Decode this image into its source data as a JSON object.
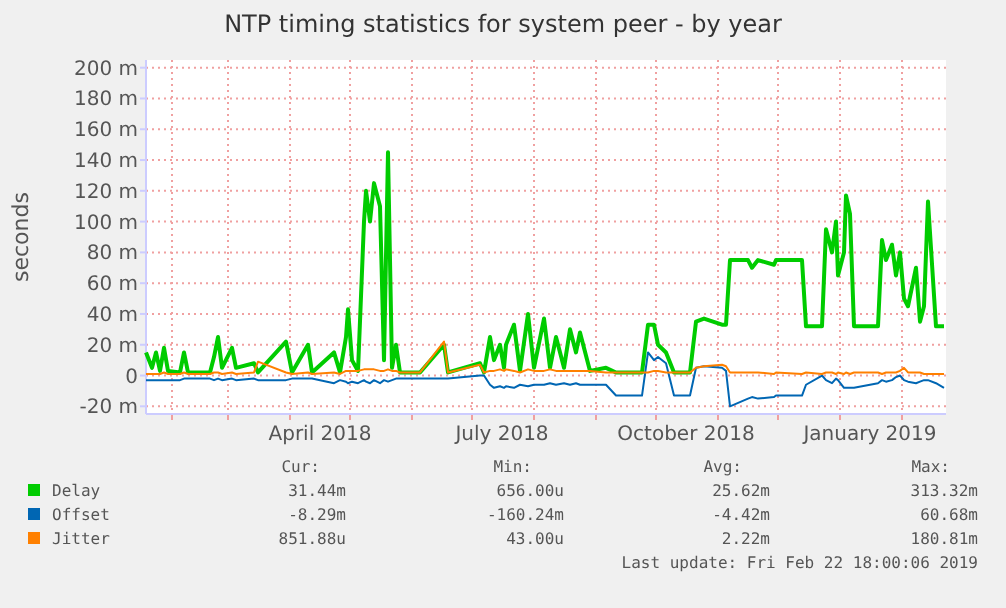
{
  "chart_data": {
    "type": "line",
    "title": "NTP timing statistics for system peer - by year",
    "ylabel": "seconds",
    "x": [
      "2018-01-19",
      "2018-01-22",
      "2018-01-24",
      "2018-01-26",
      "2018-01-28",
      "2018-01-30",
      "2018-02-05",
      "2018-02-07",
      "2018-02-09",
      "2018-02-20",
      "2018-02-22",
      "2018-02-24",
      "2018-02-26",
      "2018-03-03",
      "2018-03-05",
      "2018-03-14",
      "2018-03-16",
      "2018-03-30",
      "2018-04-02",
      "2018-04-10",
      "2018-04-12",
      "2018-04-23",
      "2018-04-26",
      "2018-04-29",
      "2018-04-30",
      "2018-05-02",
      "2018-05-05",
      "2018-05-08",
      "2018-05-09",
      "2018-05-11",
      "2018-05-13",
      "2018-05-16",
      "2018-05-18",
      "2018-05-20",
      "2018-05-22",
      "2018-05-24",
      "2018-05-26",
      "2018-06-05",
      "2018-06-17",
      "2018-06-19",
      "2018-07-05",
      "2018-07-07",
      "2018-07-10",
      "2018-07-12",
      "2018-07-15",
      "2018-07-17",
      "2018-07-18",
      "2018-07-22",
      "2018-07-25",
      "2018-07-29",
      "2018-08-01",
      "2018-08-06",
      "2018-08-09",
      "2018-08-12",
      "2018-08-16",
      "2018-08-19",
      "2018-08-22",
      "2018-08-24",
      "2018-08-29",
      "2018-09-06",
      "2018-09-11",
      "2018-09-24",
      "2018-09-27",
      "2018-09-30",
      "2018-10-02",
      "2018-10-06",
      "2018-10-10",
      "2018-10-18",
      "2018-10-21",
      "2018-10-25",
      "2018-11-03",
      "2018-11-05",
      "2018-11-07",
      "2018-11-16",
      "2018-11-18",
      "2018-11-21",
      "2018-11-29",
      "2018-11-30",
      "2018-12-13",
      "2018-12-15",
      "2018-12-23",
      "2018-12-25",
      "2018-12-28",
      "2018-12-30",
      "2018-12-31",
      "2019-01-03",
      "2019-01-04",
      "2019-01-06",
      "2019-01-08",
      "2019-01-20",
      "2019-01-22",
      "2019-01-24",
      "2019-01-27",
      "2019-01-29",
      "2019-01-31",
      "2019-02-02",
      "2019-02-04",
      "2019-02-08",
      "2019-02-10",
      "2019-02-12",
      "2019-02-14",
      "2019-02-18",
      "2019-02-22"
    ],
    "series": [
      {
        "name": "Delay",
        "color": "#00cc00",
        "values": [
          15,
          5,
          15,
          3,
          18,
          3,
          2,
          15,
          2,
          2,
          12,
          25,
          5,
          18,
          5,
          8,
          2,
          22,
          2,
          20,
          2,
          15,
          2,
          25,
          43,
          10,
          3,
          100,
          120,
          100,
          125,
          110,
          10,
          145,
          5,
          20,
          2,
          2,
          20,
          2,
          8,
          2,
          25,
          10,
          20,
          5,
          20,
          33,
          3,
          40,
          5,
          37,
          5,
          25,
          5,
          30,
          15,
          28,
          3,
          5,
          2,
          2,
          33,
          33,
          20,
          15,
          2,
          2,
          35,
          37,
          33,
          33,
          75,
          75,
          70,
          75,
          72,
          75,
          75,
          32,
          32,
          95,
          80,
          100,
          65,
          80,
          117,
          105,
          32,
          32,
          88,
          75,
          85,
          65,
          80,
          50,
          45,
          70,
          35,
          45,
          113,
          32,
          32
        ]
      },
      {
        "name": "Offset",
        "color": "#0066b3",
        "values": [
          -3,
          -3,
          -3,
          -3,
          -3,
          -3,
          -3,
          -2,
          -2,
          -2,
          -3,
          -2,
          -3,
          -2,
          -3,
          -2,
          -3,
          -3,
          -2,
          -2,
          -2,
          -5,
          -3,
          -4,
          -5,
          -4,
          -5,
          -3,
          -4,
          -5,
          -3,
          -5,
          -3,
          -4,
          -3,
          -2,
          -2,
          -2,
          -2,
          -2,
          0,
          0,
          -6,
          -8,
          -7,
          -8,
          -7,
          -8,
          -6,
          -7,
          -6,
          -6,
          -5,
          -6,
          -5,
          -6,
          -5,
          -6,
          -6,
          -6,
          -13,
          -13,
          15,
          10,
          12,
          8,
          -13,
          -13,
          5,
          6,
          5,
          3,
          -20,
          -15,
          -14,
          -15,
          -14,
          -13,
          -13,
          -6,
          0,
          -3,
          -5,
          -2,
          -3,
          -8,
          -8,
          -8,
          -8,
          -5,
          -3,
          -4,
          -3,
          -1,
          0,
          -3,
          -4,
          -5,
          -4,
          -3,
          -3,
          -5,
          -8
        ]
      },
      {
        "name": "Jitter",
        "color": "#ff8000",
        "values": [
          1,
          1,
          1,
          1,
          2,
          1,
          1,
          2,
          1,
          1,
          2,
          2,
          1,
          2,
          1,
          2,
          9,
          2,
          1,
          2,
          1,
          2,
          1,
          3,
          3,
          3,
          3,
          4,
          4,
          4,
          4,
          3,
          3,
          4,
          3,
          3,
          2,
          2,
          22,
          2,
          7,
          2,
          3,
          3,
          4,
          3,
          4,
          3,
          2,
          4,
          3,
          3,
          4,
          3,
          3,
          3,
          3,
          3,
          3,
          2,
          2,
          2,
          2,
          3,
          3,
          2,
          2,
          2,
          5,
          6,
          7,
          6,
          2,
          2,
          2,
          2,
          1,
          2,
          1,
          2,
          1,
          2,
          2,
          1,
          2,
          1,
          2,
          1,
          2,
          2,
          1,
          2,
          2,
          2,
          3,
          5,
          2,
          2,
          2,
          1,
          1,
          1,
          1
        ]
      }
    ],
    "xlim": [
      "2018-01-19",
      "2019-02-23"
    ],
    "xticks": [
      {
        "value": "2018-02-01",
        "label": null
      },
      {
        "value": "2018-03-01",
        "label": null
      },
      {
        "value": "2018-04-01",
        "label": null
      },
      {
        "value": "2018-04-16",
        "label": "April 2018"
      },
      {
        "value": "2018-05-01",
        "label": null
      },
      {
        "value": "2018-06-01",
        "label": null
      },
      {
        "value": "2018-07-01",
        "label": null
      },
      {
        "value": "2018-07-16",
        "label": "July 2018"
      },
      {
        "value": "2018-08-01",
        "label": null
      },
      {
        "value": "2018-09-01",
        "label": null
      },
      {
        "value": "2018-10-01",
        "label": null
      },
      {
        "value": "2018-10-16",
        "label": "October 2018"
      },
      {
        "value": "2018-11-01",
        "label": null
      },
      {
        "value": "2018-12-01",
        "label": null
      },
      {
        "value": "2019-01-01",
        "label": null
      },
      {
        "value": "2019-01-16",
        "label": "January 2019"
      },
      {
        "value": "2019-02-01",
        "label": null
      }
    ],
    "ylim": [
      -25,
      205
    ],
    "yticks": [
      {
        "value": -20,
        "label": "-20 m"
      },
      0,
      {
        "value": 20,
        "label": "20 m"
      },
      {
        "value": 40,
        "label": "40 m"
      },
      {
        "value": 60,
        "label": "60 m"
      },
      {
        "value": 80,
        "label": "80 m"
      },
      {
        "value": 100,
        "label": "100 m"
      },
      {
        "value": 120,
        "label": "120 m"
      },
      {
        "value": 140,
        "label": "140 m"
      },
      {
        "value": 160,
        "label": "160 m"
      },
      {
        "value": 180,
        "label": "180 m"
      },
      {
        "value": 200,
        "label": "200 m"
      }
    ],
    "grid": true,
    "legend": "bottom",
    "marker": "none",
    "line_style": "solid",
    "annotations": [
      "Cur:",
      "Min:",
      "Avg:",
      "Max:",
      "31.44m",
      "656.00u",
      "25.62m",
      "313.32m",
      "-8.29m",
      "-160.24m",
      "-4.42m",
      "60.68m",
      "851.88u",
      "43.00u",
      "2.22m",
      "180.81m",
      "Last update: Fri Feb 22 18:00:06 2019"
    ]
  }
}
